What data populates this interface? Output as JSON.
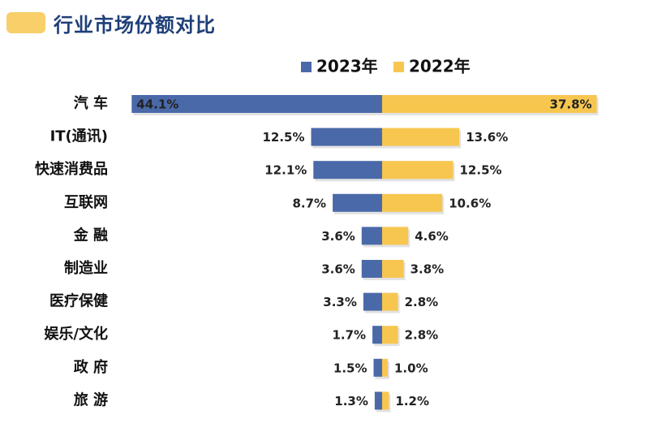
{
  "header": {
    "title": "行业市场份额对比"
  },
  "colors": {
    "series_2023": "#4a69a8",
    "series_2022": "#f7c64f",
    "accent": "#f9cf6a",
    "title": "#1f3f78"
  },
  "chart_data": {
    "type": "bar",
    "orientation": "horizontal-diverging",
    "categories": [
      "汽 车",
      "IT(通讯)",
      "快速消费品",
      "互联网",
      "金 融",
      "制造业",
      "医疗保健",
      "娱乐/文化",
      "政 府",
      "旅 游"
    ],
    "series": [
      {
        "name": "2023年",
        "values": [
          44.1,
          12.5,
          12.1,
          8.7,
          3.6,
          3.6,
          3.3,
          1.7,
          1.5,
          1.3
        ],
        "labels": [
          "44.1%",
          "12.5%",
          "12.1%",
          "8.7%",
          "3.6%",
          "3.6%",
          "3.3%",
          "1.7%",
          "1.5%",
          "1.3%"
        ]
      },
      {
        "name": "2022年",
        "values": [
          37.8,
          13.6,
          12.5,
          10.6,
          4.6,
          3.8,
          2.8,
          2.8,
          1.0,
          1.2
        ],
        "labels": [
          "37.8%",
          "13.6%",
          "12.5%",
          "10.6%",
          "4.6%",
          "3.8%",
          "2.8%",
          "2.8%",
          "1.0%",
          "1.2%"
        ]
      }
    ],
    "unit": "%",
    "legend_position": "top-right"
  }
}
